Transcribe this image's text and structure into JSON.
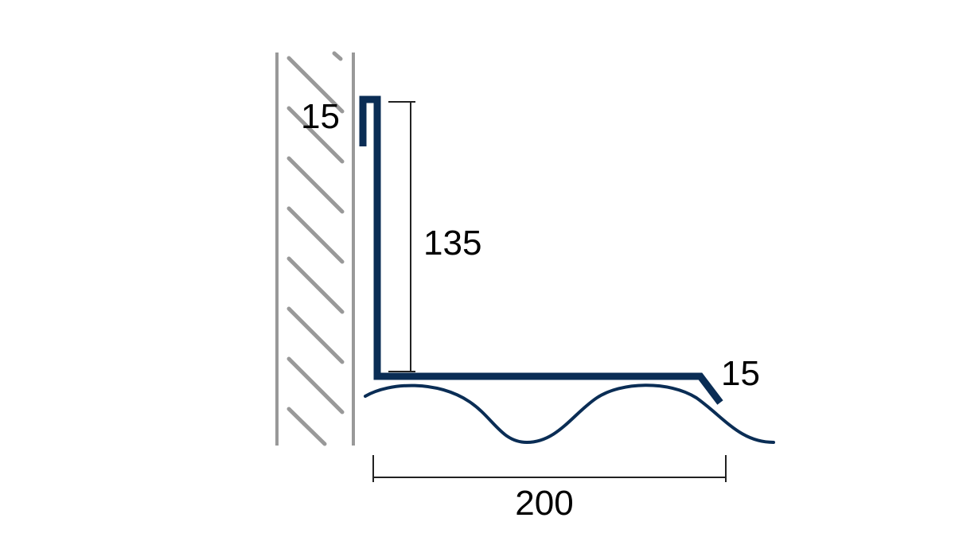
{
  "dimensions": {
    "top_return": "15",
    "upstand_height": "135",
    "drip_edge": "15",
    "cover_width": "200"
  },
  "colors": {
    "profile": "#0a2d55",
    "wall": "#999999",
    "dimension_lines": "#222222"
  }
}
